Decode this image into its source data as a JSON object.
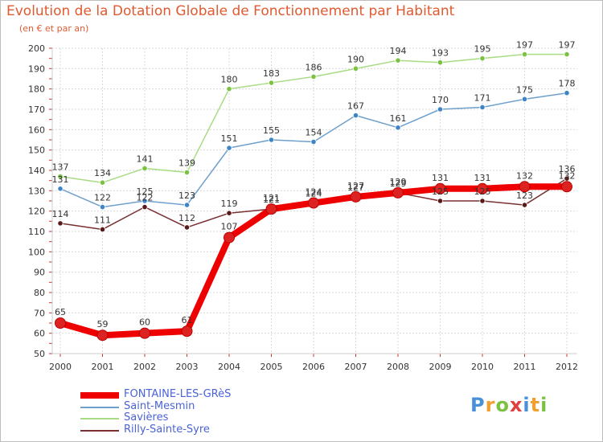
{
  "chart_data": {
    "type": "line",
    "title": "Evolution de la Dotation Globale de Fonctionnement par Habitant",
    "subtitle": "(en € et par an)",
    "xlabel": "",
    "ylabel": "",
    "ylim": [
      50,
      200
    ],
    "yticks": [
      50,
      60,
      70,
      80,
      90,
      100,
      110,
      120,
      130,
      140,
      150,
      160,
      170,
      180,
      190,
      200
    ],
    "categories": [
      "2000",
      "2001",
      "2002",
      "2003",
      "2004",
      "2005",
      "2006",
      "2007",
      "2008",
      "2009",
      "2010",
      "2011",
      "2012"
    ],
    "series": [
      {
        "name": "FONTAINE-LES-GRèS",
        "color": "#ee0000",
        "marker": "#dd2222",
        "emphasis": true,
        "values": [
          65,
          59,
          60,
          61,
          107,
          121,
          124,
          127,
          129,
          131,
          131,
          132,
          132
        ]
      },
      {
        "name": "Saint-Mesmin",
        "color": "#6ea0cc",
        "marker": "#3d85c6",
        "emphasis": false,
        "values": [
          131,
          122,
          125,
          123,
          151,
          155,
          154,
          167,
          161,
          170,
          171,
          175,
          178
        ]
      },
      {
        "name": "Savières",
        "color": "#a8dc84",
        "marker": "#7cc242",
        "emphasis": false,
        "values": [
          137,
          134,
          141,
          139,
          180,
          183,
          186,
          190,
          194,
          193,
          195,
          197,
          197
        ]
      },
      {
        "name": "Rilly-Sainte-Syre",
        "color": "#7a3030",
        "marker": "#5a1a1a",
        "emphasis": false,
        "values": [
          114,
          111,
          122,
          112,
          119,
          121,
          124,
          127,
          129,
          125,
          125,
          123,
          136
        ]
      }
    ]
  },
  "logo": {
    "letters": [
      "P",
      "r",
      "o",
      "x",
      "i",
      "t",
      "i"
    ]
  }
}
